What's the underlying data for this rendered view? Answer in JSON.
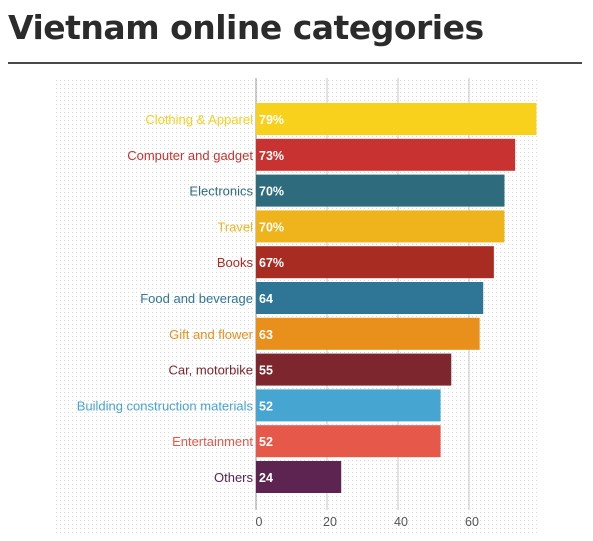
{
  "title": "Vietnam online categories",
  "chart_data": {
    "type": "bar",
    "orientation": "horizontal",
    "title": "Vietnam online categories",
    "xlabel": "",
    "ylabel": "",
    "xlim": [
      0,
      80
    ],
    "x_ticks": [
      "0",
      "20",
      "40",
      "60"
    ],
    "grid": true,
    "categories": [
      "Clothing & Apparel",
      "Computer and gadget",
      "Electronics",
      "Travel",
      "Books",
      "Food and beverage",
      "Gift and flower",
      "Car, motorbike",
      "Building construction materials",
      "Entertainment",
      "Others"
    ],
    "values": [
      79,
      73,
      70,
      70,
      67,
      64,
      63,
      55,
      52,
      52,
      24
    ],
    "value_labels": [
      "79%",
      "73%",
      "70%",
      "70%",
      "67%",
      "64",
      "63",
      "55",
      "52",
      "52",
      "24"
    ],
    "colors": [
      "#f7d11b",
      "#c83331",
      "#2e6b7d",
      "#efb41c",
      "#a82c22",
      "#2f7696",
      "#e88f1c",
      "#7d262d",
      "#47a5d2",
      "#e6594a",
      "#5d2452"
    ]
  }
}
